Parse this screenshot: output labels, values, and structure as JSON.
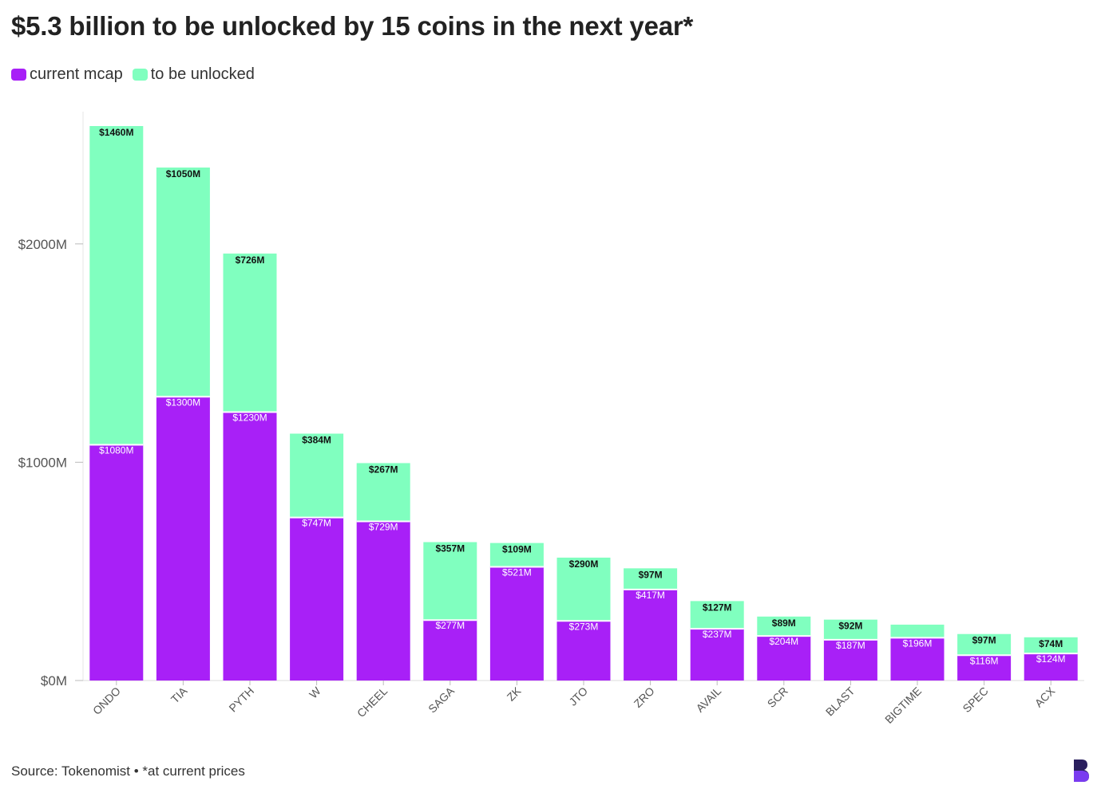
{
  "title": "$5.3 billion to be unlocked by 15 coins in the next year*",
  "source": "Source: Tokenomist • *at current prices",
  "logo_icon": "brand-b-logo-icon",
  "colors": {
    "current_mcap": "#a820f7",
    "to_be_unlocked": "#80ffbf"
  },
  "chart_data": {
    "type": "bar",
    "stacked": true,
    "title": "$5.3 billion to be unlocked by 15 coins in the next year*",
    "xlabel": "",
    "ylabel": "",
    "ylim": [
      0,
      2540
    ],
    "yticks": [
      0,
      1000,
      2000
    ],
    "ytick_labels": [
      "$0M",
      "$1000M",
      "$2000M"
    ],
    "legend_position": "top-left",
    "grid": false,
    "categories": [
      "ONDO",
      "TIA",
      "PYTH",
      "W",
      "CHEEL",
      "SAGA",
      "ZK",
      "JTO",
      "ZRO",
      "AVAIL",
      "SCR",
      "BLAST",
      "BIGTIME",
      "SPEC",
      "ACX"
    ],
    "series": [
      {
        "name": "current mcap",
        "color": "#a820f7",
        "values": [
          1080,
          1300,
          1230,
          747,
          729,
          277,
          521,
          273,
          417,
          237,
          204,
          187,
          196,
          116,
          124
        ],
        "labels": [
          "$1080M",
          "$1300M",
          "$1230M",
          "$747M",
          "$729M",
          "$277M",
          "$521M",
          "$273M",
          "$417M",
          "$237M",
          "$204M",
          "$187M",
          "$196M",
          "$116M",
          "$124M"
        ]
      },
      {
        "name": "to be unlocked",
        "color": "#80ffbf",
        "values": [
          1460,
          1050,
          726,
          384,
          267,
          357,
          109,
          290,
          97,
          127,
          89,
          92,
          60,
          97,
          74
        ],
        "labels": [
          "$1460M",
          "$1050M",
          "$726M",
          "$384M",
          "$267M",
          "$357M",
          "$109M",
          "$290M",
          "$97M",
          "$127M",
          "$89M",
          "$92M",
          "",
          "$97M",
          "$74M"
        ]
      }
    ]
  }
}
